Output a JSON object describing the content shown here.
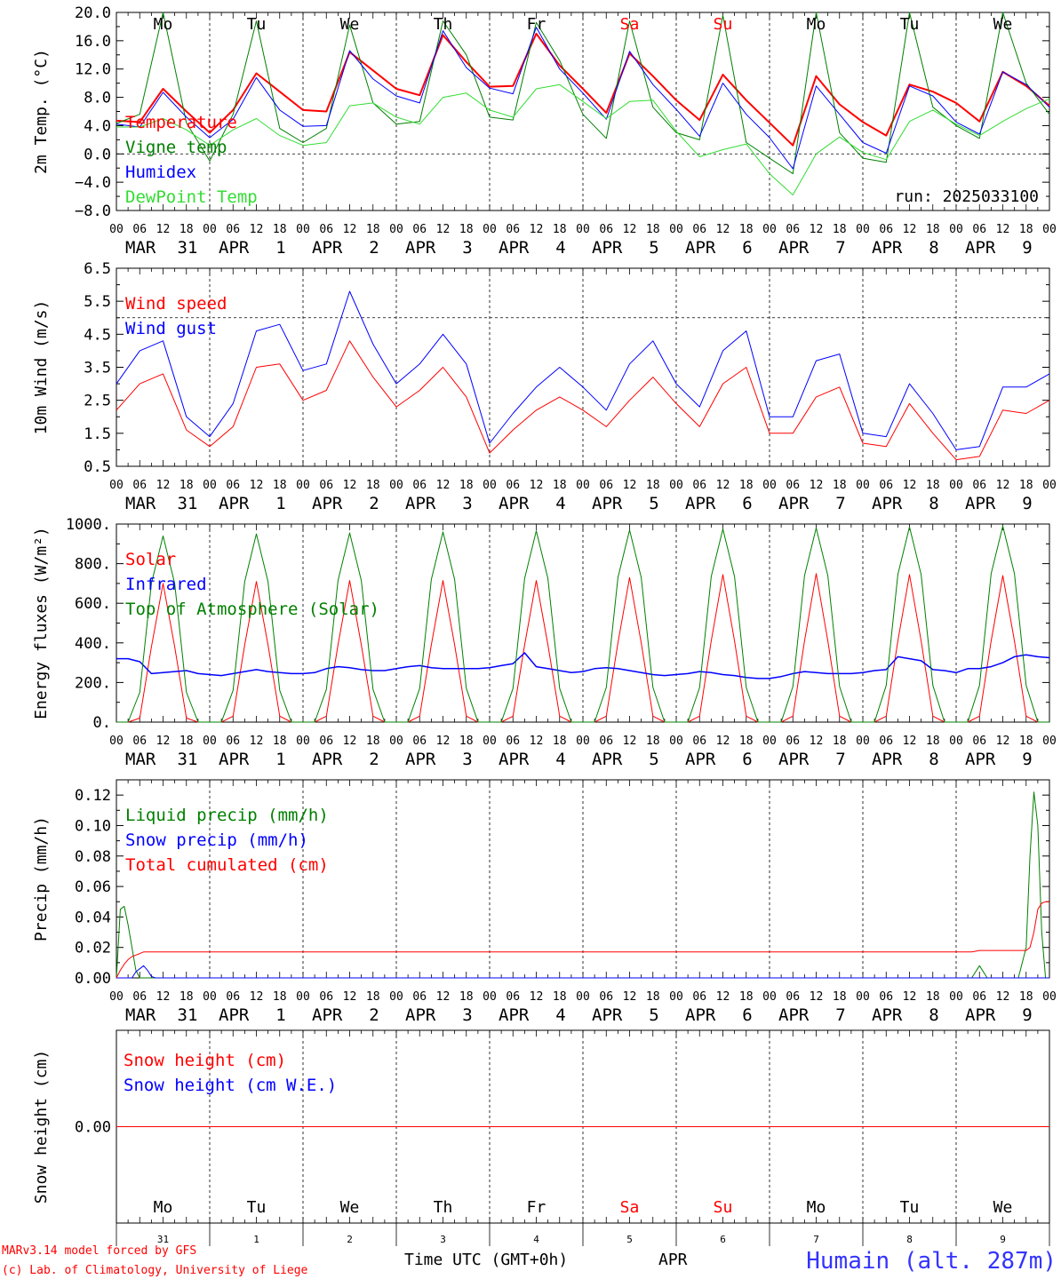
{
  "run_label": "run: 2025033100",
  "days": [
    "Mo",
    "Tu",
    "We",
    "Th",
    "Fr",
    "Sa",
    "Su",
    "Mo",
    "Tu",
    "We"
  ],
  "weekend_day_indexes": [
    5,
    6
  ],
  "date_labels": [
    {
      "month": "MAR",
      "day": "31"
    },
    {
      "month": "APR",
      "day": "1"
    },
    {
      "month": "APR",
      "day": "2"
    },
    {
      "month": "APR",
      "day": "3"
    },
    {
      "month": "APR",
      "day": "4"
    },
    {
      "month": "APR",
      "day": "5"
    },
    {
      "month": "APR",
      "day": "6"
    },
    {
      "month": "APR",
      "day": "7"
    },
    {
      "month": "APR",
      "day": "8"
    },
    {
      "month": "APR",
      "day": "9"
    }
  ],
  "hour_ticks": [
    "00",
    "06",
    "12",
    "18"
  ],
  "final_hour_tick": "00",
  "colors": {
    "red": "#ff0000",
    "green": "#008000",
    "blue": "#0000ff",
    "lightgreen": "#33dd33",
    "dashed": "#000000"
  },
  "chart_data": [
    {
      "type": "line",
      "ylabel": "2m Temp. (°C)",
      "ylim": [
        -8,
        20
      ],
      "yticks": [
        -8,
        -4,
        0,
        4,
        8,
        12,
        16,
        20
      ],
      "ytick_labels": [
        "−8.0",
        "−4.0",
        "0.0",
        "4.0",
        "8.0",
        "12.0",
        "16.0",
        "20.0"
      ],
      "ref_line": 0,
      "x_hours": [
        0,
        6,
        12,
        18,
        24,
        30,
        36,
        42,
        48,
        54,
        60,
        66,
        72,
        78,
        84,
        90,
        96,
        102,
        108,
        114,
        120,
        126,
        132,
        138,
        144,
        150,
        156,
        162,
        168,
        174,
        180,
        186,
        192,
        198,
        204,
        210,
        216,
        222,
        228,
        234,
        240
      ],
      "series": [
        {
          "name": "Temperature",
          "color": "red",
          "width": 2,
          "values": [
            4.7,
            4.5,
            9.2,
            6,
            3,
            6.2,
            11.4,
            8.8,
            6.2,
            6,
            14.4,
            11.8,
            9.2,
            8.3,
            16.8,
            13,
            9.5,
            9.6,
            17,
            12.5,
            9.2,
            5.8,
            14.2,
            11,
            7.6,
            4.8,
            11.2,
            7.6,
            4.4,
            1.2,
            11,
            7,
            4.5,
            2.6,
            9.8,
            8.8,
            7.2,
            4.6,
            11.6,
            9.6,
            6.8
          ]
        },
        {
          "name": "Vigne temp",
          "color": "green",
          "width": 1,
          "values": [
            4.3,
            5.6,
            20,
            4.4,
            -1,
            5.6,
            18.8,
            3.6,
            1.6,
            3.6,
            18.2,
            7.2,
            4.2,
            4.6,
            18.8,
            14,
            5.2,
            4.8,
            18.6,
            13.2,
            5.6,
            2.2,
            18.8,
            6.6,
            3,
            2,
            19.6,
            1.6,
            -0.6,
            -2.8,
            20,
            3,
            -0.6,
            -1.2,
            20,
            6.6,
            4,
            2.2,
            20,
            10,
            5.6
          ]
        },
        {
          "name": "Humidex",
          "color": "blue",
          "width": 1,
          "values": [
            4.2,
            3.8,
            8.7,
            5.2,
            2.3,
            4.9,
            10.8,
            6.2,
            3.9,
            4,
            14.6,
            10.6,
            8.2,
            7.2,
            17.4,
            12.2,
            9.3,
            8.5,
            17.9,
            12,
            8.6,
            4.9,
            14.5,
            9.8,
            6.3,
            2.5,
            10,
            5.6,
            2.3,
            -2.1,
            9.6,
            5.6,
            1.6,
            0.1,
            9.6,
            8.2,
            4.5,
            2.8,
            11.6,
            9.8,
            6.6
          ]
        },
        {
          "name": "DewPoint Temp",
          "color": "lightgreen",
          "width": 1,
          "values": [
            3.8,
            3.8,
            5,
            3.4,
            1.2,
            3.4,
            5,
            2.6,
            1.2,
            1.6,
            6.8,
            7.2,
            5.2,
            4.2,
            8,
            8.6,
            6.2,
            5.2,
            9.2,
            9.8,
            7.4,
            5,
            7.4,
            7.6,
            3.2,
            -0.4,
            0.6,
            1.4,
            -2.8,
            -5.8,
            0,
            2.4,
            0.2,
            -0.8,
            4.6,
            6.2,
            4.2,
            2.6,
            4.6,
            6.4,
            7.8
          ]
        }
      ]
    },
    {
      "type": "line",
      "ylabel": "10m Wind (m/s)",
      "ylim": [
        0.5,
        6.5
      ],
      "yticks": [
        0.5,
        1.5,
        2.5,
        3.5,
        4.5,
        5.5,
        6.5
      ],
      "ytick_labels": [
        "0.5",
        "1.5",
        "2.5",
        "3.5",
        "4.5",
        "5.5",
        "6.5"
      ],
      "ref_line": 5,
      "x_hours": [
        0,
        6,
        12,
        18,
        24,
        30,
        36,
        42,
        48,
        54,
        60,
        66,
        72,
        78,
        84,
        90,
        96,
        102,
        108,
        114,
        120,
        126,
        132,
        138,
        144,
        150,
        156,
        162,
        168,
        174,
        180,
        186,
        192,
        198,
        204,
        210,
        216,
        222,
        228,
        234,
        240
      ],
      "series": [
        {
          "name": "Wind speed",
          "color": "red",
          "width": 1,
          "values": [
            2.2,
            3,
            3.3,
            1.6,
            1.1,
            1.7,
            3.5,
            3.6,
            2.5,
            2.8,
            4.3,
            3.2,
            2.3,
            2.8,
            3.5,
            2.6,
            0.9,
            1.6,
            2.2,
            2.6,
            2.2,
            1.7,
            2.5,
            3.2,
            2.4,
            1.7,
            3,
            3.5,
            1.5,
            1.5,
            2.6,
            2.9,
            1.2,
            1.1,
            2.4,
            1.5,
            0.7,
            0.8,
            2.2,
            2.1,
            2.5
          ]
        },
        {
          "name": "Wind gust",
          "color": "blue",
          "width": 1,
          "values": [
            3,
            4,
            4.3,
            2,
            1.4,
            2.4,
            4.6,
            4.8,
            3.4,
            3.6,
            5.8,
            4.2,
            3,
            3.6,
            4.5,
            3.6,
            1.2,
            2.1,
            2.9,
            3.5,
            2.9,
            2.2,
            3.6,
            4.3,
            3,
            2.3,
            4,
            4.6,
            2,
            2,
            3.7,
            3.9,
            1.5,
            1.4,
            3,
            2.1,
            1,
            1.1,
            2.9,
            2.9,
            3.3
          ]
        }
      ]
    },
    {
      "type": "line",
      "ylabel": "Energy fluxes (W/m²)",
      "ylim": [
        0,
        1000
      ],
      "yticks": [
        0,
        200,
        400,
        600,
        800,
        1000
      ],
      "ytick_labels": [
        "0.",
        "200.",
        "400.",
        "600.",
        "800.",
        "1000."
      ],
      "x_hours": [
        0,
        3,
        6,
        9,
        12,
        15,
        18,
        21,
        24,
        27,
        30,
        33,
        36,
        39,
        42,
        45,
        48,
        51,
        54,
        57,
        60,
        63,
        66,
        69,
        72,
        75,
        78,
        81,
        84,
        87,
        90,
        93,
        96,
        99,
        102,
        105,
        108,
        111,
        114,
        117,
        120,
        123,
        126,
        129,
        132,
        135,
        138,
        141,
        144,
        147,
        150,
        153,
        156,
        159,
        162,
        165,
        168,
        171,
        174,
        177,
        180,
        183,
        186,
        189,
        192,
        195,
        198,
        201,
        204,
        207,
        210,
        213,
        216,
        219,
        222,
        225,
        228,
        231,
        234,
        237,
        240
      ],
      "series": [
        {
          "name": "Solar",
          "color": "red",
          "width": 1,
          "values": [
            0,
            0,
            20,
            380,
            700,
            380,
            20,
            0,
            0,
            0,
            30,
            390,
            710,
            390,
            30,
            0,
            0,
            0,
            30,
            390,
            715,
            390,
            30,
            0,
            0,
            0,
            30,
            390,
            715,
            390,
            30,
            0,
            0,
            0,
            30,
            390,
            715,
            390,
            30,
            0,
            0,
            0,
            30,
            400,
            730,
            400,
            30,
            0,
            0,
            0,
            30,
            410,
            745,
            410,
            30,
            0,
            0,
            0,
            30,
            410,
            750,
            410,
            30,
            0,
            0,
            0,
            30,
            410,
            745,
            410,
            30,
            0,
            0,
            0,
            30,
            410,
            740,
            410,
            30,
            0,
            0
          ]
        },
        {
          "name": "Infrared",
          "color": "blue",
          "width": 1.5,
          "values": [
            320,
            320,
            305,
            245,
            250,
            255,
            260,
            245,
            240,
            235,
            245,
            255,
            265,
            255,
            250,
            245,
            245,
            250,
            270,
            280,
            275,
            265,
            260,
            260,
            270,
            280,
            285,
            275,
            270,
            270,
            270,
            270,
            275,
            285,
            295,
            350,
            280,
            270,
            260,
            250,
            255,
            270,
            275,
            270,
            260,
            250,
            240,
            235,
            240,
            245,
            255,
            250,
            240,
            235,
            225,
            220,
            220,
            230,
            245,
            255,
            250,
            245,
            245,
            245,
            250,
            260,
            265,
            330,
            320,
            310,
            265,
            260,
            250,
            270,
            270,
            280,
            300,
            330,
            340,
            330,
            325
          ]
        },
        {
          "name": "Top of Atmosphere (Solar)",
          "color": "green",
          "width": 1,
          "values": [
            0,
            0,
            150,
            700,
            940,
            700,
            150,
            0,
            0,
            0,
            160,
            710,
            950,
            710,
            160,
            0,
            0,
            0,
            165,
            715,
            955,
            715,
            165,
            0,
            0,
            0,
            170,
            720,
            960,
            720,
            170,
            0,
            0,
            0,
            170,
            725,
            965,
            725,
            170,
            0,
            0,
            0,
            175,
            730,
            970,
            730,
            175,
            0,
            0,
            0,
            175,
            735,
            975,
            735,
            175,
            0,
            0,
            0,
            180,
            740,
            980,
            740,
            180,
            0,
            0,
            0,
            185,
            745,
            985,
            745,
            185,
            0,
            0,
            0,
            185,
            750,
            990,
            750,
            185,
            0,
            0
          ]
        }
      ]
    },
    {
      "type": "line",
      "ylabel": "Precip (mm/h)",
      "ylim": [
        0,
        0.13
      ],
      "yticks": [
        0,
        0.02,
        0.04,
        0.06,
        0.08,
        0.1,
        0.12
      ],
      "ytick_labels": [
        "0.00",
        "0.02",
        "0.04",
        "0.06",
        "0.08",
        "0.10",
        "0.12"
      ],
      "x_hours": [
        0,
        1,
        2,
        3,
        4,
        5,
        6,
        7,
        8,
        9,
        10,
        12,
        24,
        48,
        72,
        96,
        120,
        144,
        168,
        192,
        216,
        220,
        222,
        224,
        226,
        228,
        230,
        232,
        234,
        235,
        236,
        237,
        238,
        239,
        240
      ],
      "series": [
        {
          "name": "Liquid precip (mm/h)",
          "color": "green",
          "width": 1,
          "values": [
            0,
            0.045,
            0.047,
            0.035,
            0.02,
            0.005,
            0,
            0,
            0,
            0,
            0,
            0,
            0,
            0,
            0,
            0,
            0,
            0,
            0,
            0,
            0,
            0,
            0.008,
            0,
            0,
            0,
            0,
            0,
            0.02,
            0.08,
            0.122,
            0.1,
            0.03,
            0,
            0
          ]
        },
        {
          "name": "Snow precip (mm/h)",
          "color": "blue",
          "width": 1,
          "values": [
            0,
            0,
            0,
            0,
            0,
            0.004,
            0.006,
            0.008,
            0.005,
            0.001,
            0,
            0,
            0,
            0,
            0,
            0,
            0,
            0,
            0,
            0,
            0,
            0,
            0,
            0,
            0,
            0,
            0,
            0,
            0,
            0,
            0,
            0,
            0,
            0,
            0
          ]
        },
        {
          "name": "Total cumulated (cm)",
          "color": "red",
          "width": 1,
          "values": [
            0,
            0.005,
            0.009,
            0.012,
            0.014,
            0.015,
            0.016,
            0.017,
            0.017,
            0.017,
            0.017,
            0.017,
            0.017,
            0.017,
            0.017,
            0.017,
            0.017,
            0.017,
            0.017,
            0.017,
            0.017,
            0.017,
            0.018,
            0.018,
            0.018,
            0.018,
            0.018,
            0.018,
            0.018,
            0.02,
            0.03,
            0.045,
            0.049,
            0.05,
            0.05
          ]
        }
      ]
    },
    {
      "type": "line",
      "ylabel": "Snow height (cm)",
      "ylim": [
        -1,
        1
      ],
      "yticks": [
        0
      ],
      "ytick_labels": [
        "0.00"
      ],
      "x_hours": [
        0,
        240
      ],
      "series": [
        {
          "name": "Snow height (cm)",
          "color": "red",
          "width": 1,
          "values": [
            0,
            0
          ]
        },
        {
          "name": "Snow height (cm W.E.)",
          "color": "blue",
          "width": 1,
          "values": [
            null,
            null
          ]
        }
      ]
    }
  ],
  "footer": {
    "model_line": "MARv3.14 model forced by GFS",
    "credit_line": "(c) Lab. of Climatology, University of Liege",
    "time_label": "Time UTC (GMT+0h)",
    "month_label": "APR",
    "station": "Humain (alt. 287m)"
  }
}
